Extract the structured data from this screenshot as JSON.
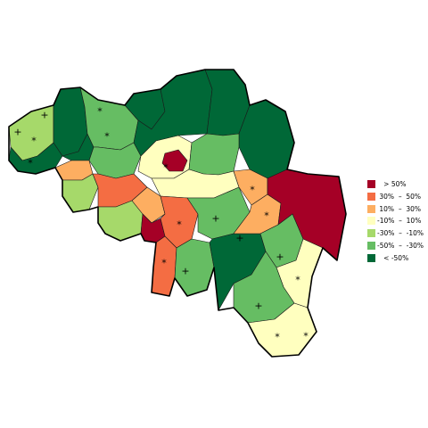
{
  "colors": {
    "gt50": "#a50026",
    "p30_50": "#f46d43",
    "p10_30": "#fdae61",
    "m10_10": "#ffffbf",
    "m30_m10": "#a6d96a",
    "m50_m30": "#66bd63",
    "lt_m50": "#006837"
  },
  "legend": [
    {
      "label": "   > 50%",
      "color": "#a50026"
    },
    {
      "label": " 30%  –  50%",
      "color": "#f46d43"
    },
    {
      "label": " 10%  –  30%",
      "color": "#fdae61"
    },
    {
      "label": "-10%  –  10%",
      "color": "#ffffbf"
    },
    {
      "label": "-30%  –  -10%",
      "color": "#a6d96a"
    },
    {
      "label": "-50%  –  -30%",
      "color": "#66bd63"
    },
    {
      "label": "   < -50%",
      "color": "#006837"
    }
  ],
  "markers": [
    {
      "symbol": "+"
    },
    {
      "symbol": "+"
    },
    {
      "symbol": "*"
    },
    {
      "symbol": "*"
    },
    {
      "symbol": "*"
    },
    {
      "symbol": "*"
    },
    {
      "symbol": "*"
    },
    {
      "symbol": "*"
    },
    {
      "symbol": "*"
    },
    {
      "symbol": "+"
    },
    {
      "symbol": "+"
    },
    {
      "symbol": "*"
    },
    {
      "symbol": "*"
    },
    {
      "symbol": "+"
    },
    {
      "symbol": "+"
    },
    {
      "symbol": "+"
    },
    {
      "symbol": "*"
    },
    {
      "symbol": "*"
    }
  ]
}
